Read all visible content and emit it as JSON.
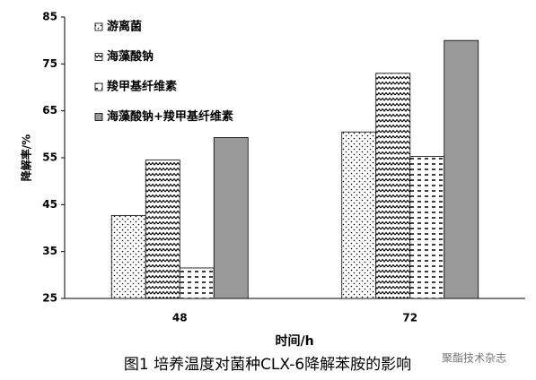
{
  "chart_data": {
    "type": "bar",
    "caption": "图1  培养温度对菌种CLX-6降解苯胺的影响",
    "watermark": "聚酯技术杂志",
    "xlabel": "时间/h",
    "ylabel": "降解率/%",
    "categories": [
      "48",
      "72"
    ],
    "series": [
      {
        "name": "游离菌",
        "color": "#000000",
        "pattern": "dots",
        "values": [
          42.7,
          60.5
        ]
      },
      {
        "name": "海藻酸钠",
        "color": "#000000",
        "pattern": "zigzag",
        "values": [
          54.5,
          73
        ]
      },
      {
        "name": "羧甲基纤维素",
        "color": "#000000",
        "pattern": "dashes",
        "values": [
          31.5,
          55.3
        ]
      },
      {
        "name": "海藻酸钠+羧甲基纤维素",
        "color": "#999999",
        "pattern": "solid",
        "values": [
          59.3,
          80
        ]
      }
    ],
    "ylim": [
      25,
      85
    ],
    "yticks": [
      25,
      35,
      45,
      55,
      65,
      75,
      85
    ],
    "legend": "upper left"
  }
}
